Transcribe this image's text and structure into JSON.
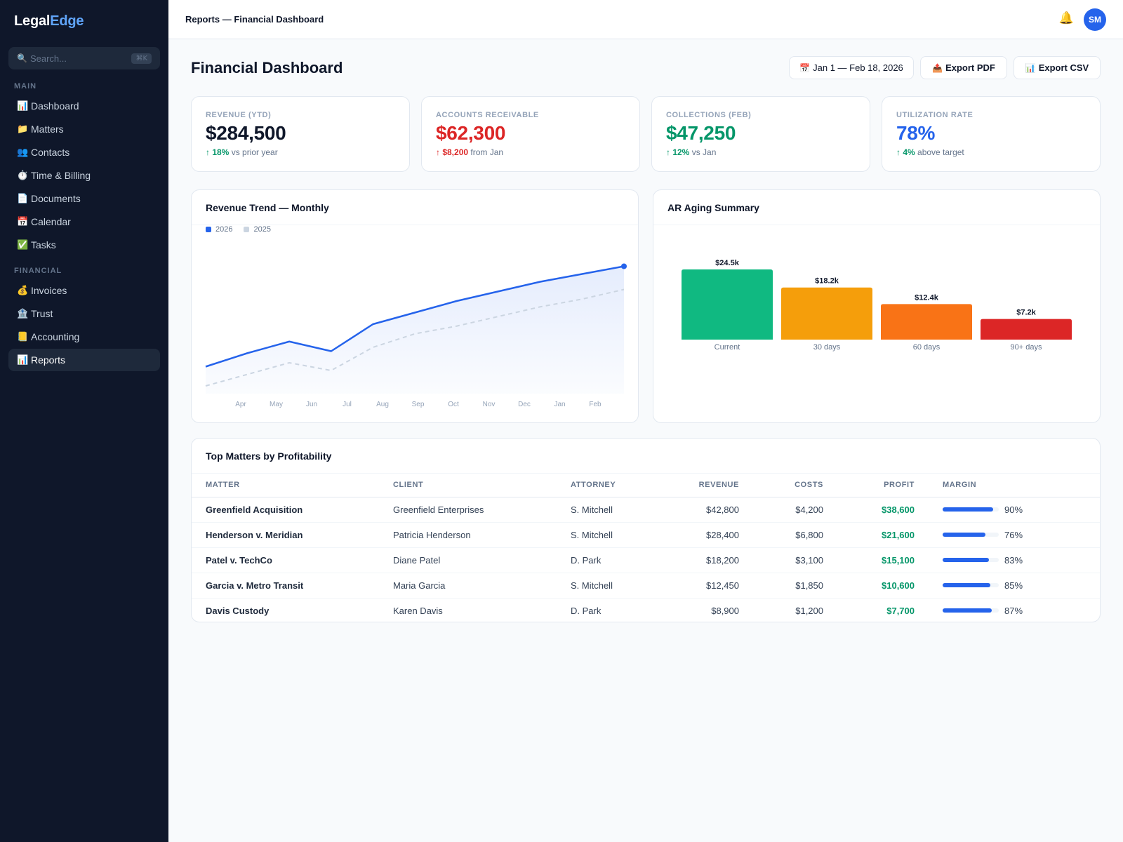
{
  "app": {
    "logo_main": "Legal",
    "logo_accent": "Edge"
  },
  "search": {
    "placeholder": "Search...",
    "shortcut": "⌘K"
  },
  "sidebar": {
    "sections": [
      {
        "label": "MAIN"
      },
      {
        "label": "FINANCIAL"
      }
    ],
    "items": [
      {
        "icon": "📊",
        "icon_name": "chart-icon",
        "label": "Dashboard"
      },
      {
        "icon": "📁",
        "icon_name": "folder-icon",
        "label": "Matters"
      },
      {
        "icon": "👥",
        "icon_name": "people-icon",
        "label": "Contacts"
      },
      {
        "icon": "⏱️",
        "icon_name": "stopwatch-icon",
        "label": "Time & Billing"
      },
      {
        "icon": "📄",
        "icon_name": "document-icon",
        "label": "Documents"
      },
      {
        "icon": "📅",
        "icon_name": "calendar-icon",
        "label": "Calendar"
      },
      {
        "icon": "✅",
        "icon_name": "checkmark-icon",
        "label": "Tasks"
      },
      {
        "icon": "💰",
        "icon_name": "money-bag-icon",
        "label": "Invoices"
      },
      {
        "icon": "🏦",
        "icon_name": "bank-icon",
        "label": "Trust"
      },
      {
        "icon": "📒",
        "icon_name": "ledger-icon",
        "label": "Accounting"
      },
      {
        "icon": "📊",
        "icon_name": "chart-icon",
        "label": "Reports",
        "active": true
      }
    ]
  },
  "topbar": {
    "breadcrumb": "Reports — Financial Dashboard",
    "bell_icon": "🔔",
    "avatar_initials": "SM"
  },
  "page": {
    "title": "Financial Dashboard",
    "date_range_icon": "📅",
    "date_range": "Jan 1 — Feb 18, 2026",
    "export_pdf_icon": "📤",
    "export_pdf": "Export PDF",
    "export_csv_icon": "📊",
    "export_csv": "Export CSV"
  },
  "kpis": [
    {
      "label": "REVENUE (YTD)",
      "value": "$284,500",
      "delta": "↑ 18%",
      "delta_text": "vs prior year",
      "value_color": "#0f172a",
      "delta_color": "#059669"
    },
    {
      "label": "ACCOUNTS RECEIVABLE",
      "value": "$62,300",
      "delta": "↑ $8,200",
      "delta_text": "from Jan",
      "value_color": "#dc2626",
      "delta_color": "#dc2626"
    },
    {
      "label": "COLLECTIONS (FEB)",
      "value": "$47,250",
      "delta": "↑ 12%",
      "delta_text": "vs Jan",
      "value_color": "#059669",
      "delta_color": "#059669"
    },
    {
      "label": "UTILIZATION RATE",
      "value": "78%",
      "delta": "↑ 4%",
      "delta_text": "above target",
      "value_color": "#2563eb",
      "delta_color": "#059669"
    }
  ],
  "chart_data": [
    {
      "type": "line",
      "title": "Revenue Trend — Monthly",
      "categories": [
        "Apr",
        "May",
        "Jun",
        "Jul",
        "Aug",
        "Sep",
        "Oct",
        "Nov",
        "Dec",
        "Jan",
        "Feb"
      ],
      "series": [
        {
          "name": "2026",
          "color": "#2563eb",
          "values": [
            14,
            21,
            27,
            22,
            36,
            42,
            48,
            53,
            58,
            62,
            66
          ]
        },
        {
          "name": "2025",
          "color": "#cbd5e1",
          "values": [
            4,
            10,
            16,
            12,
            24,
            31,
            35,
            40,
            45,
            49,
            54
          ]
        }
      ],
      "ylim": [
        0,
        80
      ],
      "legend": "top-left",
      "grid": false
    },
    {
      "type": "bar",
      "title": "AR Aging Summary",
      "categories": [
        "Current",
        "30 days",
        "60 days",
        "90+ days"
      ],
      "values": [
        24.5,
        18.2,
        12.4,
        7.2
      ],
      "labels": [
        "$24.5k",
        "$18.2k",
        "$12.4k",
        "$7.2k"
      ],
      "colors": [
        "#10b981",
        "#f59e0b",
        "#f97316",
        "#dc2626"
      ],
      "ylim": [
        0,
        30
      ]
    }
  ],
  "table": {
    "title": "Top Matters by Profitability",
    "columns": [
      "MATTER",
      "CLIENT",
      "ATTORNEY",
      "REVENUE",
      "COSTS",
      "PROFIT",
      "MARGIN"
    ],
    "rows": [
      {
        "matter": "Greenfield Acquisition",
        "client": "Greenfield Enterprises",
        "attorney": "S. Mitchell",
        "revenue": "$42,800",
        "costs": "$4,200",
        "profit": "$38,600",
        "margin": "90%",
        "margin_value": 90
      },
      {
        "matter": "Henderson v. Meridian",
        "client": "Patricia Henderson",
        "attorney": "S. Mitchell",
        "revenue": "$28,400",
        "costs": "$6,800",
        "profit": "$21,600",
        "margin": "76%",
        "margin_value": 76
      },
      {
        "matter": "Patel v. TechCo",
        "client": "Diane Patel",
        "attorney": "D. Park",
        "revenue": "$18,200",
        "costs": "$3,100",
        "profit": "$15,100",
        "margin": "83%",
        "margin_value": 83
      },
      {
        "matter": "Garcia v. Metro Transit",
        "client": "Maria Garcia",
        "attorney": "S. Mitchell",
        "revenue": "$12,450",
        "costs": "$1,850",
        "profit": "$10,600",
        "margin": "85%",
        "margin_value": 85
      },
      {
        "matter": "Davis Custody",
        "client": "Karen Davis",
        "attorney": "D. Park",
        "revenue": "$8,900",
        "costs": "$1,200",
        "profit": "$7,700",
        "margin": "87%",
        "margin_value": 87
      }
    ]
  }
}
